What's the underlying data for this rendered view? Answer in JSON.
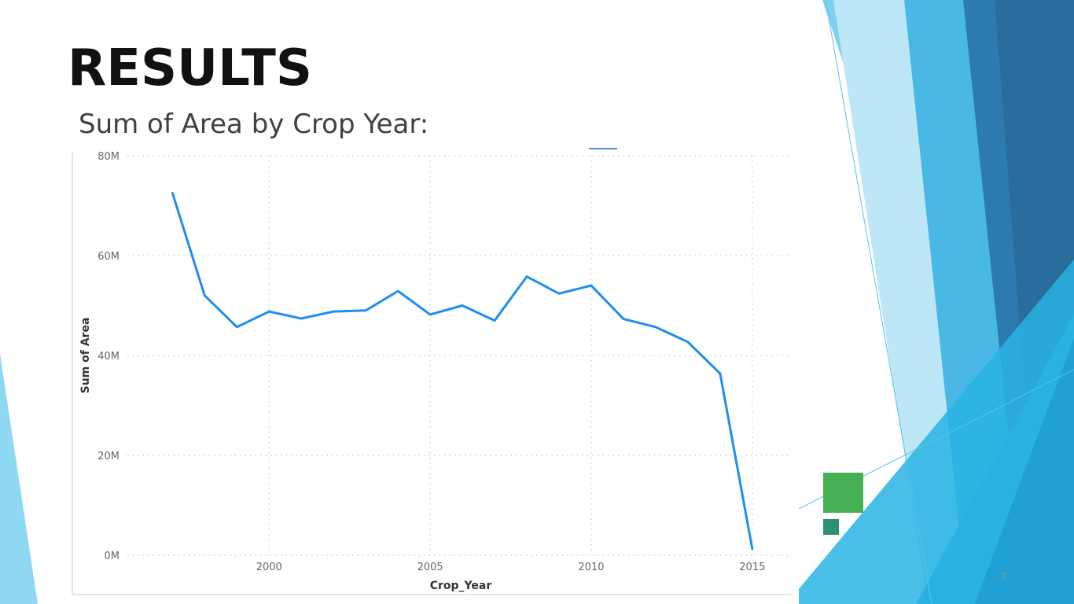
{
  "slide": {
    "title": "RESULTS",
    "subtitle": "Sum of Area by Crop Year:",
    "page_number": "7"
  },
  "colors": {
    "line": "#1e8ef0",
    "accent_green": "#45b054",
    "accent_teal": "#2d9070",
    "decor_light_blue": "#7ed2f2",
    "decor_mid_blue": "#3aaee0",
    "decor_dark_blue": "#2c6f9e"
  },
  "chart_data": {
    "type": "line",
    "title": "",
    "xlabel": "Crop_Year",
    "ylabel": "Sum of Area",
    "x_ticks": [
      2000,
      2005,
      2010,
      2015
    ],
    "y_ticks": [
      0,
      20000000,
      40000000,
      60000000,
      80000000
    ],
    "y_tick_labels": [
      "0M",
      "20M",
      "40M",
      "60M",
      "80M"
    ],
    "xlim": [
      1995.6,
      2016.2
    ],
    "ylim": [
      0,
      80000000
    ],
    "grid": true,
    "series": [
      {
        "x": [
          1997,
          1998,
          1999,
          2000,
          2001,
          2002,
          2003,
          2004,
          2005,
          2006,
          2007,
          2008,
          2009,
          2010,
          2011,
          2012,
          2013,
          2014,
          2015
        ],
        "values": [
          72500000,
          52000000,
          45700000,
          48800000,
          47400000,
          48800000,
          49000000,
          52900000,
          48200000,
          50000000,
          47000000,
          55800000,
          52400000,
          54000000,
          47300000,
          45700000,
          42700000,
          36400000,
          1300000
        ]
      }
    ]
  }
}
